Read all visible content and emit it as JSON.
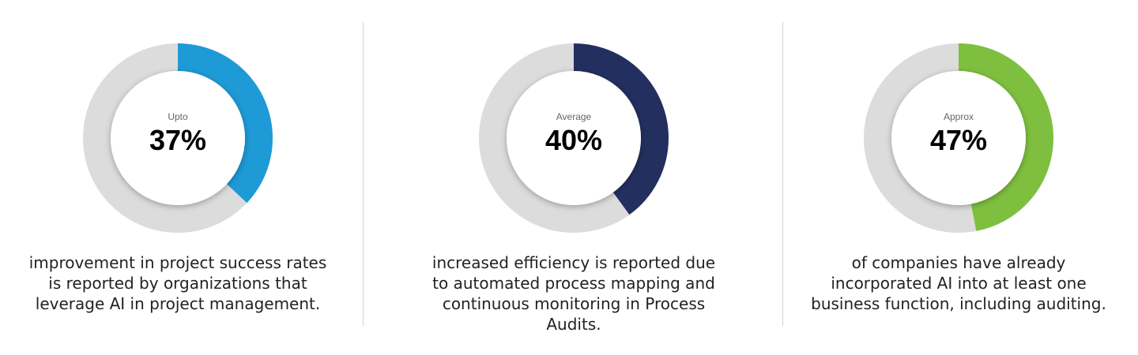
{
  "chart_data": [
    {
      "type": "pie",
      "variant": "donut",
      "qualifier": "Upto",
      "value": 37,
      "label": "37%",
      "color": "#1e9ad6",
      "track_color": "#dcdcdc",
      "description": [
        "improvement in project success rates",
        "is reported by organizations that",
        "leverage AI in project management."
      ]
    },
    {
      "type": "pie",
      "variant": "donut",
      "qualifier": "Average",
      "value": 40,
      "label": "40%",
      "color": "#232f5f",
      "track_color": "#dcdcdc",
      "description": [
        "increased efficiency is reported due",
        "to automated process mapping and",
        "continuous monitoring in Process",
        "Audits."
      ]
    },
    {
      "type": "pie",
      "variant": "donut",
      "qualifier": "Approx",
      "value": 47,
      "label": "47%",
      "color": "#7fbf3f",
      "track_color": "#dcdcdc",
      "description": [
        "of companies have already",
        "incorporated AI into at least one",
        "business function, including auditing."
      ]
    }
  ]
}
